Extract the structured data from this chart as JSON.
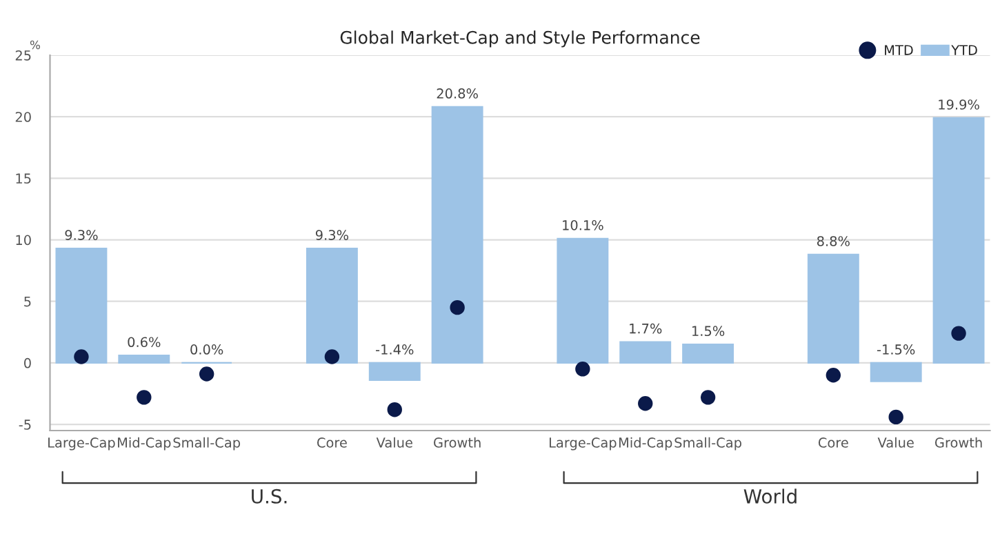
{
  "chart_data": {
    "type": "bar",
    "title": "Global Market-Cap and Style Performance",
    "ylabel": "%",
    "categories": [
      "Large-Cap",
      "Mid-Cap",
      "Small-Cap",
      null,
      "Core",
      "Value",
      "Growth",
      null,
      "Large-Cap",
      "Mid-Cap",
      "Small-Cap",
      null,
      "Core",
      "Value",
      "Growth"
    ],
    "series": [
      {
        "name": "MTD",
        "type": "scatter",
        "color": "#0b1a4a",
        "values": [
          0.5,
          -2.8,
          -0.9,
          null,
          0.5,
          -3.8,
          4.5,
          null,
          -0.5,
          -3.3,
          -2.8,
          null,
          -1.0,
          -4.4,
          2.4
        ]
      },
      {
        "name": "YTD",
        "color": "#9dc3e6",
        "values": [
          9.3,
          0.6,
          0.0,
          null,
          9.3,
          -1.4,
          20.8,
          null,
          10.1,
          1.7,
          1.5,
          null,
          8.8,
          -1.5,
          19.9
        ],
        "value_labels": [
          "9.3%",
          "0.6%",
          "0.0%",
          null,
          "9.3%",
          "-1.4%",
          "20.8%",
          null,
          "10.1%",
          "1.7%",
          "1.5%",
          null,
          "8.8%",
          "-1.5%",
          "19.9%"
        ]
      }
    ],
    "annotations": [
      "U.S.",
      "World"
    ],
    "ylim": [
      -5.5,
      25
    ],
    "yticks": [
      -5,
      0,
      5,
      10,
      15,
      20,
      25
    ],
    "grid": "y",
    "legend": "top right",
    "marker": "circle"
  }
}
